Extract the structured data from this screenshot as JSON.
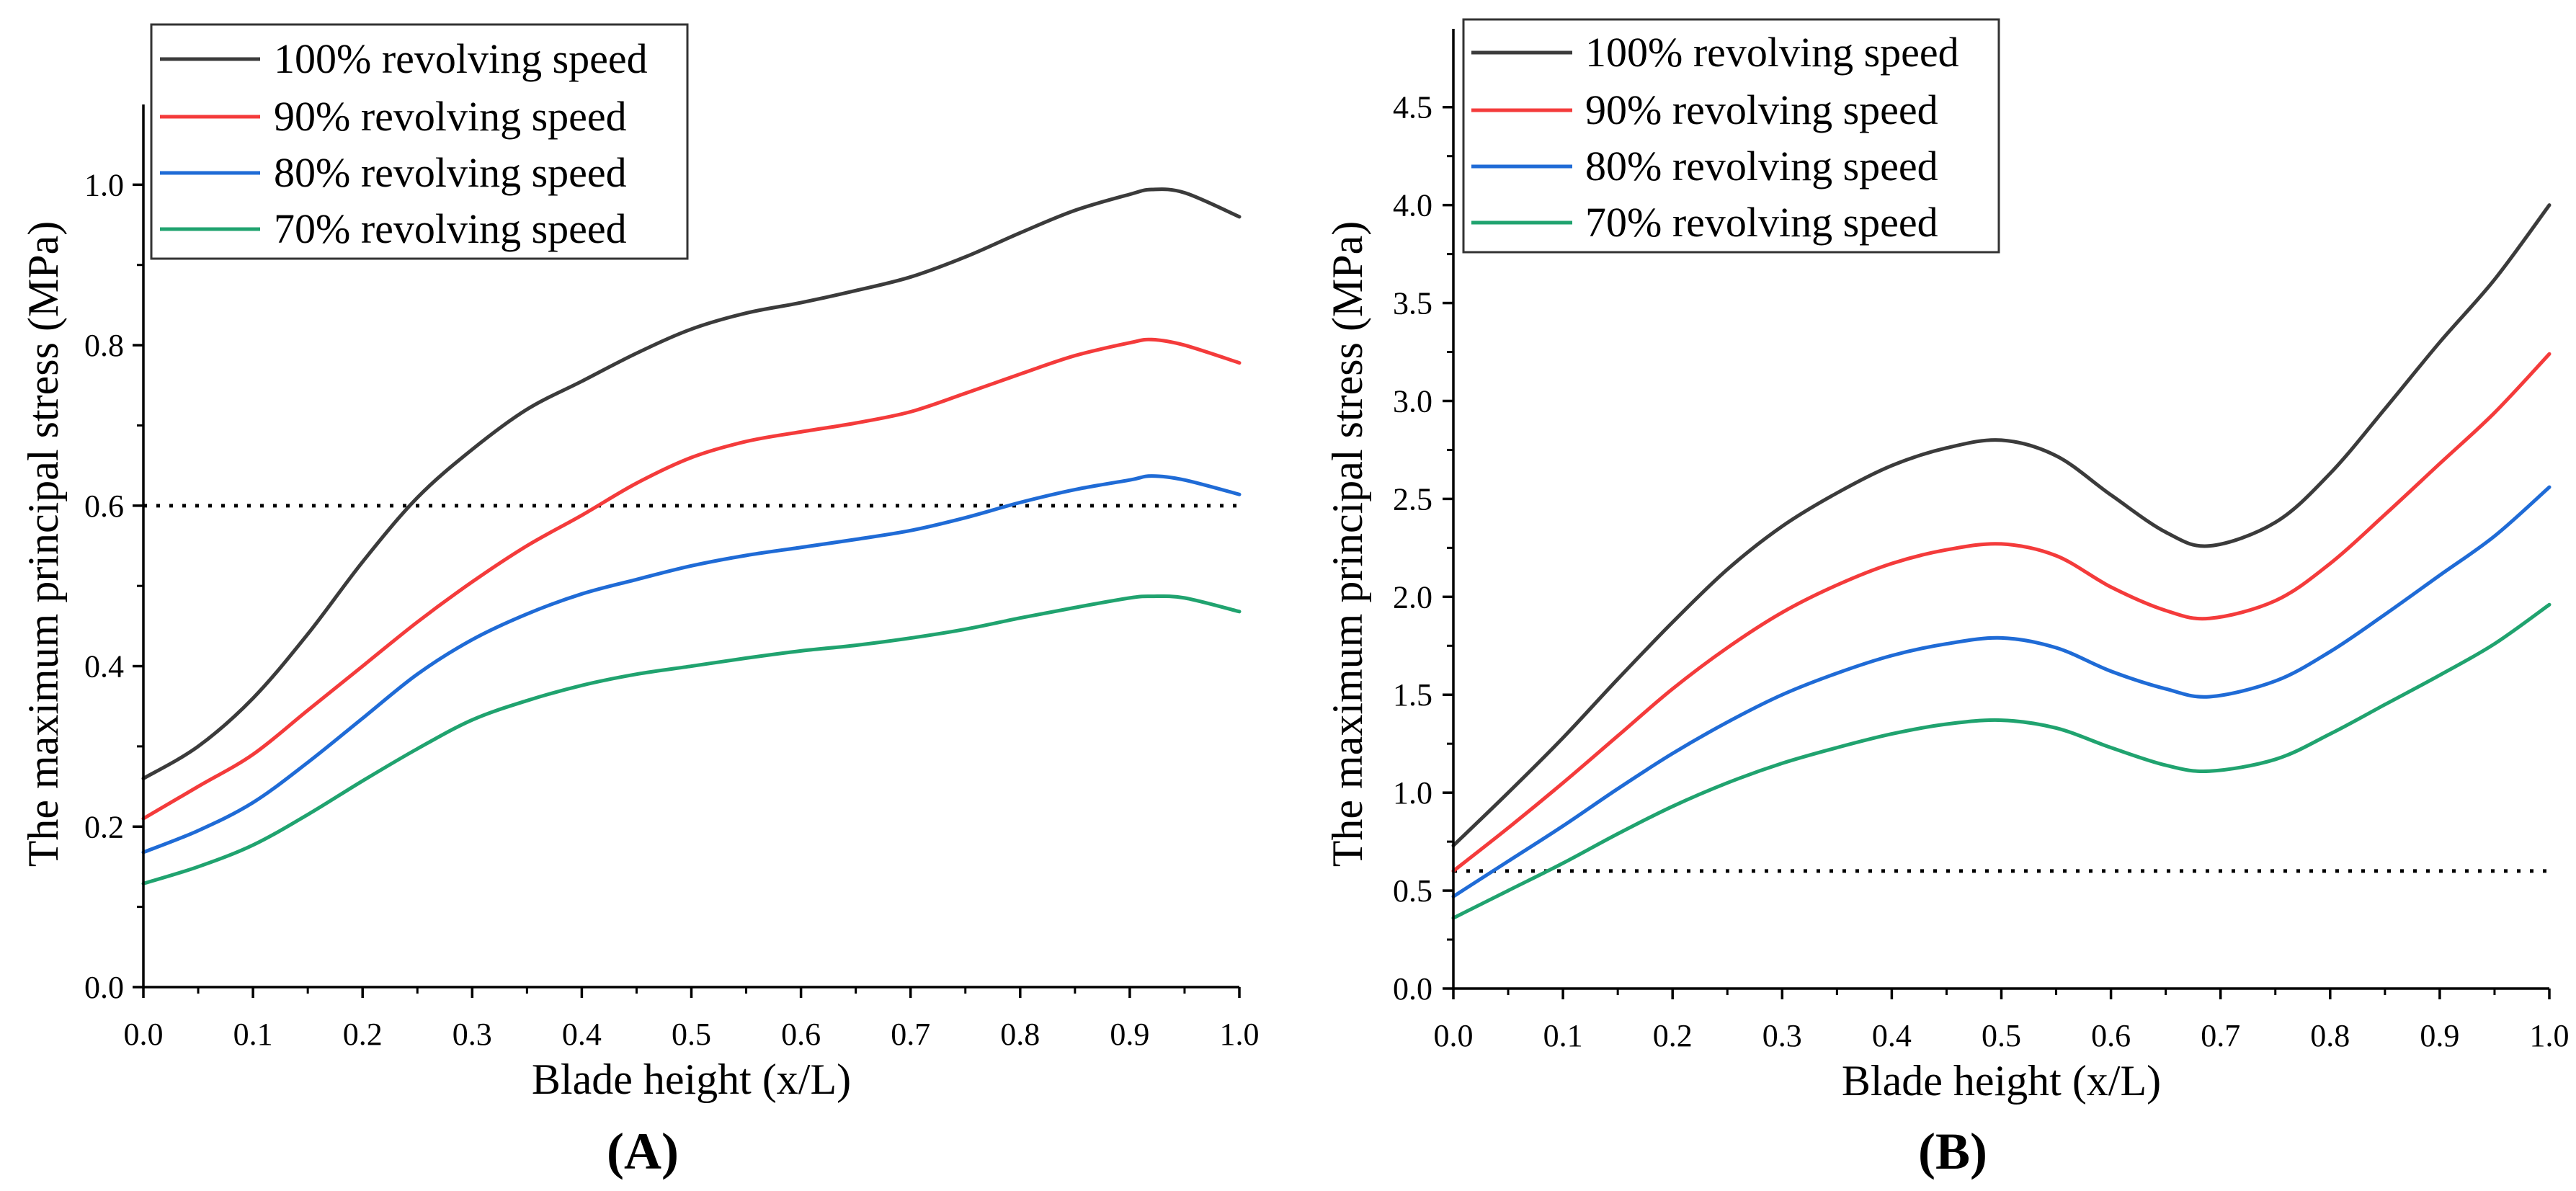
{
  "chart_data": [
    {
      "type": "line",
      "panel_label": "(A)",
      "xlabel": "Blade height (x/L)",
      "ylabel": "The maximum principal stress (MPa)",
      "xlim": [
        0,
        1.0
      ],
      "ylim": [
        0,
        1.1
      ],
      "xtick_labels": [
        "0.0",
        "0.1",
        "0.2",
        "0.3",
        "0.4",
        "0.5",
        "0.6",
        "0.7",
        "0.8",
        "0.9",
        "1.0"
      ],
      "ytick_labels": [
        "0.0",
        "0.2",
        "0.4",
        "0.6",
        "0.8",
        "1.0"
      ],
      "grid": false,
      "legend": "top-left",
      "reference_line": {
        "y": 0.6,
        "style": "dotted",
        "color": "#000000"
      },
      "x": [
        0,
        0.05,
        0.1,
        0.15,
        0.2,
        0.25,
        0.3,
        0.35,
        0.4,
        0.45,
        0.5,
        0.55,
        0.6,
        0.65,
        0.7,
        0.75,
        0.8,
        0.85,
        0.9,
        0.92,
        0.95,
        1.0
      ],
      "series": [
        {
          "name": "100% revolving speed",
          "color": "#3b3b3b",
          "values": [
            0.26,
            0.3,
            0.36,
            0.44,
            0.53,
            0.61,
            0.67,
            0.72,
            0.755,
            0.79,
            0.82,
            0.84,
            0.853,
            0.868,
            0.885,
            0.91,
            0.94,
            0.968,
            0.988,
            0.994,
            0.99,
            0.96
          ]
        },
        {
          "name": "90% revolving speed",
          "color": "#f43b3b",
          "values": [
            0.21,
            0.25,
            0.29,
            0.345,
            0.4,
            0.455,
            0.505,
            0.55,
            0.588,
            0.628,
            0.66,
            0.68,
            0.692,
            0.703,
            0.717,
            0.74,
            0.764,
            0.787,
            0.803,
            0.807,
            0.8,
            0.778
          ]
        },
        {
          "name": "80% revolving speed",
          "color": "#1f6bd6",
          "values": [
            0.168,
            0.195,
            0.23,
            0.28,
            0.335,
            0.39,
            0.433,
            0.465,
            0.49,
            0.508,
            0.525,
            0.538,
            0.548,
            0.558,
            0.569,
            0.585,
            0.604,
            0.62,
            0.632,
            0.637,
            0.632,
            0.614
          ]
        },
        {
          "name": "70% revolving speed",
          "color": "#20a36f",
          "values": [
            0.129,
            0.15,
            0.177,
            0.215,
            0.257,
            0.297,
            0.333,
            0.357,
            0.376,
            0.39,
            0.4,
            0.41,
            0.419,
            0.426,
            0.435,
            0.446,
            0.46,
            0.473,
            0.485,
            0.487,
            0.485,
            0.468
          ]
        }
      ]
    },
    {
      "type": "line",
      "panel_label": "(B)",
      "xlabel": "Blade height (x/L)",
      "ylabel": "The maximum principal stress (MPa)",
      "xlim": [
        0,
        1.0
      ],
      "ylim": [
        0,
        4.9
      ],
      "xtick_labels": [
        "0.0",
        "0.1",
        "0.2",
        "0.3",
        "0.4",
        "0.5",
        "0.6",
        "0.7",
        "0.8",
        "0.9",
        "1.0"
      ],
      "ytick_labels": [
        "0.0",
        "0.5",
        "1.0",
        "1.5",
        "2.0",
        "2.5",
        "3.0",
        "3.5",
        "4.0",
        "4.5"
      ],
      "grid": false,
      "legend": "top-left",
      "reference_line": {
        "y": 0.6,
        "style": "dotted",
        "color": "#000000"
      },
      "x": [
        0,
        0.05,
        0.1,
        0.15,
        0.2,
        0.25,
        0.3,
        0.35,
        0.4,
        0.45,
        0.5,
        0.55,
        0.6,
        0.65,
        0.69,
        0.75,
        0.8,
        0.85,
        0.9,
        0.95,
        1.0
      ],
      "series": [
        {
          "name": "100% revolving speed",
          "color": "#3b3b3b",
          "values": [
            0.73,
            1.0,
            1.28,
            1.58,
            1.87,
            2.14,
            2.36,
            2.53,
            2.67,
            2.76,
            2.8,
            2.72,
            2.52,
            2.33,
            2.26,
            2.38,
            2.63,
            2.96,
            3.3,
            3.62,
            4.0
          ]
        },
        {
          "name": "90% revolving speed",
          "color": "#f43b3b",
          "values": [
            0.6,
            0.82,
            1.05,
            1.29,
            1.53,
            1.74,
            1.92,
            2.06,
            2.17,
            2.24,
            2.27,
            2.21,
            2.05,
            1.93,
            1.89,
            1.98,
            2.17,
            2.42,
            2.68,
            2.94,
            3.24
          ]
        },
        {
          "name": "80% revolving speed",
          "color": "#1f6bd6",
          "values": [
            0.47,
            0.65,
            0.83,
            1.02,
            1.2,
            1.36,
            1.5,
            1.61,
            1.7,
            1.76,
            1.79,
            1.74,
            1.62,
            1.53,
            1.49,
            1.57,
            1.72,
            1.91,
            2.11,
            2.31,
            2.56
          ]
        },
        {
          "name": "70% revolving speed",
          "color": "#20a36f",
          "values": [
            0.36,
            0.5,
            0.64,
            0.79,
            0.93,
            1.05,
            1.15,
            1.23,
            1.3,
            1.35,
            1.37,
            1.33,
            1.23,
            1.14,
            1.11,
            1.17,
            1.3,
            1.45,
            1.6,
            1.76,
            1.96
          ]
        }
      ]
    }
  ]
}
